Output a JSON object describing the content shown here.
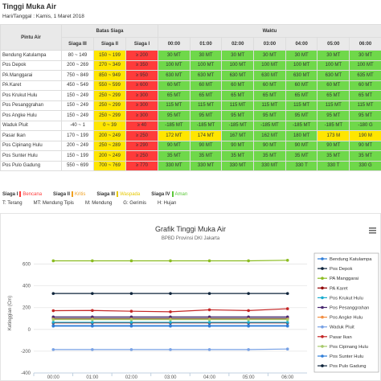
{
  "header": {
    "title": "Tinggi Muka Air",
    "date": "Hari/Tanggal : Kamis, 1 Maret 2018"
  },
  "table": {
    "headers": {
      "gate": "Pintu Air",
      "limits": "Batas Siaga",
      "time": "Waktu",
      "siaga3": "Siaga III",
      "siaga2": "Siaga II",
      "siaga1": "Siaga I",
      "times": [
        "00:00",
        "01:00",
        "02:00",
        "03:00",
        "04:00",
        "05:00",
        "06:00"
      ]
    },
    "limit_colors": [
      "#ffffff",
      "#ffe600",
      "#ff3b3b"
    ],
    "rows": [
      {
        "name": "Bendung Katulampa",
        "limits": [
          "80 ~ 149",
          "150 ~ 199",
          "≥ 200"
        ],
        "readings": [
          "30 MT",
          "30 MT",
          "30 MT",
          "30 MT",
          "30 MT",
          "30 MT",
          "30 MT"
        ],
        "colors": [
          "#6fd84a",
          "#6fd84a",
          "#6fd84a",
          "#6fd84a",
          "#6fd84a",
          "#6fd84a",
          "#6fd84a"
        ]
      },
      {
        "name": "Pos Depok",
        "limits": [
          "200 ~ 269",
          "270 ~ 349",
          "≥ 350"
        ],
        "readings": [
          "100 MT",
          "100 MT",
          "100 MT",
          "100 MT",
          "100 MT",
          "100 MT",
          "100 MT"
        ],
        "colors": [
          "#6fd84a",
          "#6fd84a",
          "#6fd84a",
          "#6fd84a",
          "#6fd84a",
          "#6fd84a",
          "#6fd84a"
        ]
      },
      {
        "name": "PA Manggarai",
        "limits": [
          "750 ~ 849",
          "850 ~ 949",
          "≥ 950"
        ],
        "readings": [
          "630 MT",
          "630 MT",
          "630 MT",
          "630 MT",
          "630 MT",
          "630 MT",
          "635 MT"
        ],
        "colors": [
          "#6fd84a",
          "#6fd84a",
          "#6fd84a",
          "#6fd84a",
          "#6fd84a",
          "#6fd84a",
          "#6fd84a"
        ]
      },
      {
        "name": "PA Karet",
        "limits": [
          "450 ~ 549",
          "550 ~ 599",
          "≥ 600"
        ],
        "readings": [
          "60 MT",
          "60 MT",
          "60 MT",
          "60 MT",
          "60 MT",
          "60 MT",
          "60 MT"
        ],
        "colors": [
          "#6fd84a",
          "#6fd84a",
          "#6fd84a",
          "#6fd84a",
          "#6fd84a",
          "#6fd84a",
          "#6fd84a"
        ]
      },
      {
        "name": "Pos Krukut Hulu",
        "limits": [
          "150 ~ 249",
          "250 ~ 299",
          "≥ 300"
        ],
        "readings": [
          "65 MT",
          "65 MT",
          "65 MT",
          "65 MT",
          "65 MT",
          "65 MT",
          "65 MT"
        ],
        "colors": [
          "#6fd84a",
          "#6fd84a",
          "#6fd84a",
          "#6fd84a",
          "#6fd84a",
          "#6fd84a",
          "#6fd84a"
        ]
      },
      {
        "name": "Pos Pesanggrahan",
        "limits": [
          "150 ~ 249",
          "250 ~ 299",
          "≥ 300"
        ],
        "readings": [
          "115 MT",
          "115 MT",
          "115 MT",
          "115 MT",
          "115 MT",
          "115 MT",
          "115 MT"
        ],
        "colors": [
          "#6fd84a",
          "#6fd84a",
          "#6fd84a",
          "#6fd84a",
          "#6fd84a",
          "#6fd84a",
          "#6fd84a"
        ]
      },
      {
        "name": "Pos Angke Hulu",
        "limits": [
          "150 ~ 249",
          "250 ~ 299",
          "≥ 300"
        ],
        "readings": [
          "95 MT",
          "95 MT",
          "95 MT",
          "95 MT",
          "95 MT",
          "95 MT",
          "95 MT"
        ],
        "colors": [
          "#6fd84a",
          "#6fd84a",
          "#6fd84a",
          "#6fd84a",
          "#6fd84a",
          "#6fd84a",
          "#6fd84a"
        ]
      },
      {
        "name": "Waduk Pluit",
        "limits": [
          "-40 ~ 1",
          "0 ~ 39",
          "≥ 40"
        ],
        "readings": [
          "-185 MT",
          "-185 MT",
          "-185 MT",
          "-185 MT",
          "-185 MT",
          "-185 MT",
          "-180 G"
        ],
        "colors": [
          "#6fd84a",
          "#6fd84a",
          "#6fd84a",
          "#6fd84a",
          "#6fd84a",
          "#6fd84a",
          "#6fd84a"
        ]
      },
      {
        "name": "Pasar Ikan",
        "limits": [
          "170 ~ 199",
          "200 ~ 249",
          "≥ 250"
        ],
        "readings": [
          "172 MT",
          "174 MT",
          "167 MT",
          "162 MT",
          "180 MT",
          "173 M",
          "190 M"
        ],
        "colors": [
          "#ffe600",
          "#ffe600",
          "#6fd84a",
          "#6fd84a",
          "#6fd84a",
          "#ffe600",
          "#ffe600"
        ]
      },
      {
        "name": "Pos Cipinang Hulu",
        "limits": [
          "200 ~ 249",
          "250 ~ 289",
          "≥ 290"
        ],
        "readings": [
          "90 MT",
          "90 MT",
          "90 MT",
          "90 MT",
          "90 MT",
          "90 MT",
          "90 MT"
        ],
        "colors": [
          "#6fd84a",
          "#6fd84a",
          "#6fd84a",
          "#6fd84a",
          "#6fd84a",
          "#6fd84a",
          "#6fd84a"
        ]
      },
      {
        "name": "Pos Sunter Hulu",
        "limits": [
          "150 ~ 199",
          "200 ~ 249",
          "≥ 250"
        ],
        "readings": [
          "35 MT",
          "35 MT",
          "35 MT",
          "35 MT",
          "35 MT",
          "35 MT",
          "35 MT"
        ],
        "colors": [
          "#6fd84a",
          "#6fd84a",
          "#6fd84a",
          "#6fd84a",
          "#6fd84a",
          "#6fd84a",
          "#6fd84a"
        ]
      },
      {
        "name": "Pos Pulo Gadung",
        "limits": [
          "550 ~ 699",
          "700 ~ 769",
          "≥ 770"
        ],
        "readings": [
          "330 MT",
          "330 MT",
          "330 MT",
          "330 MT",
          "330 T",
          "330 T",
          "330 G"
        ],
        "colors": [
          "#6fd84a",
          "#6fd84a",
          "#6fd84a",
          "#6fd84a",
          "#6fd84a",
          "#6fd84a",
          "#6fd84a"
        ]
      }
    ]
  },
  "legend": {
    "levels": [
      {
        "level": "Siaga I",
        "label": "Bencana",
        "color": "#ff3b3b"
      },
      {
        "level": "Siaga II",
        "label": "Kritis",
        "color": "#f0a020"
      },
      {
        "level": "Siaga III",
        "label": "Waspada",
        "color": "#e6c800"
      },
      {
        "level": "Siaga IV",
        "label": "Aman",
        "color": "#5cc83a"
      }
    ],
    "codes": [
      "T: Terang",
      "MT: Mendung Tipis",
      "M: Mendung",
      "G: Gerimis",
      "H: Hujan"
    ]
  },
  "chart_data": {
    "type": "line",
    "title": "Grafik Tinggi Muka Air",
    "subtitle": "BPBD Provinsi DKI Jakarta",
    "y_label": "Ketinggian (Cm)",
    "categories": [
      "00:00",
      "01:00",
      "02:00",
      "03:00",
      "04:00",
      "05:00",
      "06:00"
    ],
    "ylim": [
      -400,
      700
    ],
    "yticks": [
      -400,
      -200,
      0,
      200,
      400,
      600
    ],
    "grid": true,
    "series": [
      {
        "name": "Bendung Katulampa",
        "color": "#2f7ed8",
        "values": [
          30,
          30,
          30,
          30,
          30,
          30,
          30
        ]
      },
      {
        "name": "Pos Depok",
        "color": "#0d233a",
        "values": [
          100,
          100,
          100,
          100,
          100,
          100,
          100
        ]
      },
      {
        "name": "PA Manggarai",
        "color": "#8bbc21",
        "values": [
          630,
          630,
          630,
          630,
          630,
          630,
          635
        ]
      },
      {
        "name": "PA Karet",
        "color": "#910000",
        "values": [
          60,
          60,
          60,
          60,
          60,
          60,
          60
        ]
      },
      {
        "name": "Pos Krukut Hulu",
        "color": "#1aadce",
        "values": [
          65,
          65,
          65,
          65,
          65,
          65,
          65
        ]
      },
      {
        "name": "Pos Pesanggrahan",
        "color": "#492970",
        "values": [
          115,
          115,
          115,
          115,
          115,
          115,
          115
        ]
      },
      {
        "name": "Pos Angke Hulu",
        "color": "#f28f43",
        "values": [
          95,
          95,
          95,
          95,
          95,
          95,
          95
        ]
      },
      {
        "name": "Waduk Pluit",
        "color": "#77a1e5",
        "values": [
          -185,
          -185,
          -185,
          -185,
          -185,
          -185,
          -180
        ]
      },
      {
        "name": "Pasar Ikan",
        "color": "#c42525",
        "values": [
          172,
          174,
          167,
          162,
          180,
          173,
          190
        ]
      },
      {
        "name": "Pos Cipinang Hulu",
        "color": "#a6c96a",
        "values": [
          90,
          90,
          90,
          90,
          90,
          90,
          90
        ]
      },
      {
        "name": "Pos Sunter Hulu",
        "color": "#2f7ed8",
        "values": [
          35,
          35,
          35,
          35,
          35,
          35,
          35
        ]
      },
      {
        "name": "Pos Pulo Gadung",
        "color": "#0d233a",
        "values": [
          330,
          330,
          330,
          330,
          330,
          330,
          330
        ]
      }
    ]
  }
}
